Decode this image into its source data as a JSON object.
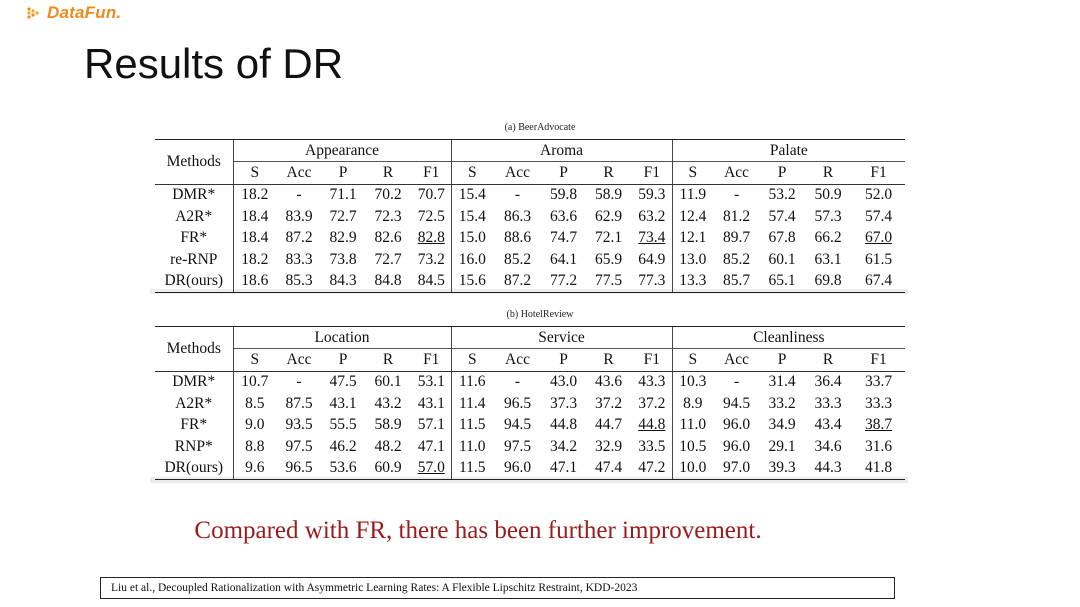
{
  "brand": {
    "logo_text": "DataFun."
  },
  "slide": {
    "title": "Results of DR"
  },
  "table_a": {
    "caption": "(a) BeerAdvocate",
    "methods_header": "Methods",
    "groups": [
      "Appearance",
      "Aroma",
      "Palate"
    ],
    "columns": [
      "S",
      "Acc",
      "P",
      "R",
      "F1"
    ],
    "rows": [
      {
        "method": "DMR*",
        "cells": [
          {
            "v": "18.2"
          },
          {
            "v": "-"
          },
          {
            "v": "71.1"
          },
          {
            "v": "70.2"
          },
          {
            "v": "70.7"
          },
          {
            "v": "15.4"
          },
          {
            "v": "-"
          },
          {
            "v": "59.8"
          },
          {
            "v": "58.9"
          },
          {
            "v": "59.3"
          },
          {
            "v": "11.9"
          },
          {
            "v": "-"
          },
          {
            "v": "53.2"
          },
          {
            "v": "50.9"
          },
          {
            "v": "52.0"
          }
        ]
      },
      {
        "method": "A2R*",
        "cells": [
          {
            "v": "18.4"
          },
          {
            "v": "83.9"
          },
          {
            "v": "72.7"
          },
          {
            "v": "72.3"
          },
          {
            "v": "72.5"
          },
          {
            "v": "15.4"
          },
          {
            "v": "86.3"
          },
          {
            "v": "63.6"
          },
          {
            "v": "62.9"
          },
          {
            "v": "63.2"
          },
          {
            "v": "12.4"
          },
          {
            "v": "81.2"
          },
          {
            "v": "57.4"
          },
          {
            "v": "57.3"
          },
          {
            "v": "57.4"
          }
        ]
      },
      {
        "method": "FR*",
        "cells": [
          {
            "v": "18.4"
          },
          {
            "v": "87.2"
          },
          {
            "v": "82.9"
          },
          {
            "v": "82.6"
          },
          {
            "v": "82.8",
            "u": true
          },
          {
            "v": "15.0"
          },
          {
            "v": "88.6"
          },
          {
            "v": "74.7"
          },
          {
            "v": "72.1"
          },
          {
            "v": "73.4",
            "u": true
          },
          {
            "v": "12.1"
          },
          {
            "v": "89.7"
          },
          {
            "v": "67.8",
            "b": true
          },
          {
            "v": "66.2"
          },
          {
            "v": "67.0",
            "u": true
          }
        ]
      },
      {
        "method": "re-RNP",
        "cells": [
          {
            "v": "18.2"
          },
          {
            "v": "83.3"
          },
          {
            "v": "73.8"
          },
          {
            "v": "72.7"
          },
          {
            "v": "73.2"
          },
          {
            "v": "16.0"
          },
          {
            "v": "85.2"
          },
          {
            "v": "64.1"
          },
          {
            "v": "65.9"
          },
          {
            "v": "64.9"
          },
          {
            "v": "13.0"
          },
          {
            "v": "85.2"
          },
          {
            "v": "60.1"
          },
          {
            "v": "63.1"
          },
          {
            "v": "61.5"
          }
        ]
      },
      {
        "method": "DR(ours)",
        "cells": [
          {
            "v": "18.6"
          },
          {
            "v": "85.3"
          },
          {
            "v": "84.3",
            "b": true
          },
          {
            "v": "84.8",
            "b": true
          },
          {
            "v": "84.5",
            "b": true
          },
          {
            "v": "15.6"
          },
          {
            "v": "87.2"
          },
          {
            "v": "77.2",
            "b": true
          },
          {
            "v": "77.5",
            "b": true
          },
          {
            "v": "77.3",
            "b": true
          },
          {
            "v": "13.3"
          },
          {
            "v": "85.7"
          },
          {
            "v": "65.1"
          },
          {
            "v": "69.8",
            "b": true
          },
          {
            "v": "67.4",
            "b": true
          }
        ]
      }
    ]
  },
  "table_b": {
    "caption": "(b) HotelReview",
    "methods_header": "Methods",
    "groups": [
      "Location",
      "Service",
      "Cleanliness"
    ],
    "columns": [
      "S",
      "Acc",
      "P",
      "R",
      "F1"
    ],
    "rows": [
      {
        "method": "DMR*",
        "cells": [
          {
            "v": "10.7"
          },
          {
            "v": "-"
          },
          {
            "v": "47.5"
          },
          {
            "v": "60.1"
          },
          {
            "v": "53.1"
          },
          {
            "v": "11.6"
          },
          {
            "v": "-"
          },
          {
            "v": "43.0"
          },
          {
            "v": "43.6"
          },
          {
            "v": "43.3"
          },
          {
            "v": "10.3"
          },
          {
            "v": "-"
          },
          {
            "v": "31.4"
          },
          {
            "v": "36.4"
          },
          {
            "v": "33.7"
          }
        ]
      },
      {
        "method": "A2R*",
        "cells": [
          {
            "v": "8.5"
          },
          {
            "v": "87.5"
          },
          {
            "v": "43.1"
          },
          {
            "v": "43.2"
          },
          {
            "v": "43.1"
          },
          {
            "v": "11.4"
          },
          {
            "v": "96.5"
          },
          {
            "v": "37.3"
          },
          {
            "v": "37.2"
          },
          {
            "v": "37.2"
          },
          {
            "v": "8.9"
          },
          {
            "v": "94.5"
          },
          {
            "v": "33.2"
          },
          {
            "v": "33.3"
          },
          {
            "v": "33.3"
          }
        ]
      },
      {
        "method": "FR*",
        "cells": [
          {
            "v": "9.0"
          },
          {
            "v": "93.5"
          },
          {
            "v": "55.5",
            "b": true
          },
          {
            "v": "58.9"
          },
          {
            "v": "57.1",
            "b": true
          },
          {
            "v": "11.5"
          },
          {
            "v": "94.5"
          },
          {
            "v": "44.8"
          },
          {
            "v": "44.7"
          },
          {
            "v": "44.8",
            "u": true
          },
          {
            "v": "11.0"
          },
          {
            "v": "96.0"
          },
          {
            "v": "34.9"
          },
          {
            "v": "43.4"
          },
          {
            "v": "38.7",
            "u": true
          }
        ]
      },
      {
        "method": "RNP*",
        "cells": [
          {
            "v": "8.8"
          },
          {
            "v": "97.5"
          },
          {
            "v": "46.2"
          },
          {
            "v": "48.2"
          },
          {
            "v": "47.1"
          },
          {
            "v": "11.0"
          },
          {
            "v": "97.5"
          },
          {
            "v": "34.2"
          },
          {
            "v": "32.9"
          },
          {
            "v": "33.5"
          },
          {
            "v": "10.5"
          },
          {
            "v": "96.0"
          },
          {
            "v": "29.1"
          },
          {
            "v": "34.6"
          },
          {
            "v": "31.6"
          }
        ]
      },
      {
        "method": "DR(ours)",
        "cells": [
          {
            "v": "9.6"
          },
          {
            "v": "96.5"
          },
          {
            "v": "53.6"
          },
          {
            "v": "60.9",
            "b": true
          },
          {
            "v": "57.0",
            "u": true
          },
          {
            "v": "11.5"
          },
          {
            "v": "96.0"
          },
          {
            "v": "47.1",
            "b": true
          },
          {
            "v": "47.4",
            "b": true
          },
          {
            "v": "47.2",
            "b": true
          },
          {
            "v": "10.0"
          },
          {
            "v": "97.0"
          },
          {
            "v": "39.3",
            "b": true
          },
          {
            "v": "44.3",
            "b": true
          },
          {
            "v": "41.8",
            "b": true
          }
        ]
      }
    ]
  },
  "conclusion": "Compared with FR, there has been further improvement.",
  "citation": "Liu et al., Decoupled Rationalization with Asymmetric Learning Rates: A Flexible Lipschitz Restraint, KDD-2023"
}
